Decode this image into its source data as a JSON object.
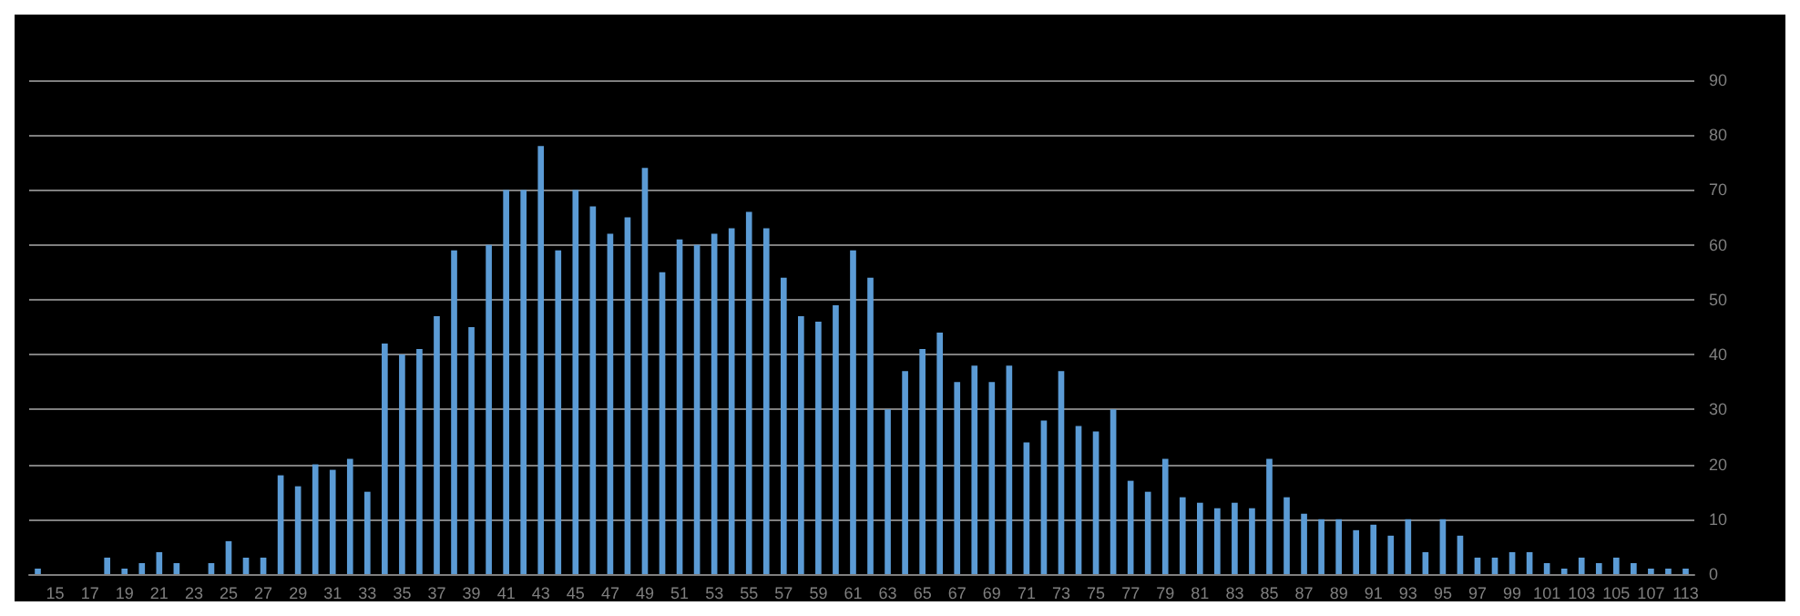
{
  "chart_data": {
    "type": "bar",
    "categories": [
      null,
      "15",
      null,
      "17",
      null,
      "19",
      null,
      "21",
      null,
      "23",
      null,
      "25",
      null,
      "27",
      null,
      "29",
      null,
      "31",
      null,
      "33",
      null,
      "35",
      null,
      "37",
      null,
      "39",
      null,
      "41",
      null,
      "43",
      null,
      "45",
      null,
      "47",
      null,
      "49",
      null,
      "51",
      null,
      "53",
      null,
      "55",
      null,
      "57",
      null,
      "59",
      null,
      "61",
      null,
      "63",
      null,
      "65",
      null,
      "67",
      null,
      "69",
      null,
      "71",
      null,
      "73",
      null,
      "75",
      null,
      "77",
      null,
      "79",
      null,
      "81",
      null,
      "83",
      null,
      "85",
      null,
      "87",
      null,
      "89",
      null,
      "91",
      null,
      "93",
      null,
      "95",
      null,
      "97",
      null,
      "99",
      null,
      "101",
      null,
      "103",
      null,
      "105",
      null,
      "107",
      null,
      "113"
    ],
    "values": [
      1,
      0,
      0,
      0,
      3,
      1,
      2,
      4,
      2,
      0,
      2,
      6,
      3,
      3,
      18,
      16,
      20,
      19,
      21,
      15,
      42,
      40,
      41,
      47,
      59,
      45,
      60,
      70,
      70,
      78,
      59,
      70,
      67,
      62,
      65,
      74,
      55,
      61,
      60,
      62,
      63,
      66,
      63,
      54,
      47,
      46,
      49,
      59,
      54,
      30,
      37,
      41,
      44,
      35,
      38,
      35,
      38,
      24,
      28,
      37,
      27,
      26,
      30,
      17,
      15,
      21,
      14,
      13,
      12,
      13,
      12,
      21,
      14,
      11,
      10,
      10,
      8,
      9,
      7,
      10,
      4,
      10,
      7,
      3,
      3,
      4,
      4,
      2,
      1,
      3,
      2,
      3,
      2,
      1,
      1,
      1
    ],
    "color": "#5b9bd5",
    "ylim": [
      0,
      90
    ],
    "yticks": [
      0,
      10,
      20,
      30,
      40,
      50,
      60,
      70,
      80,
      90
    ],
    "grid": "y"
  }
}
